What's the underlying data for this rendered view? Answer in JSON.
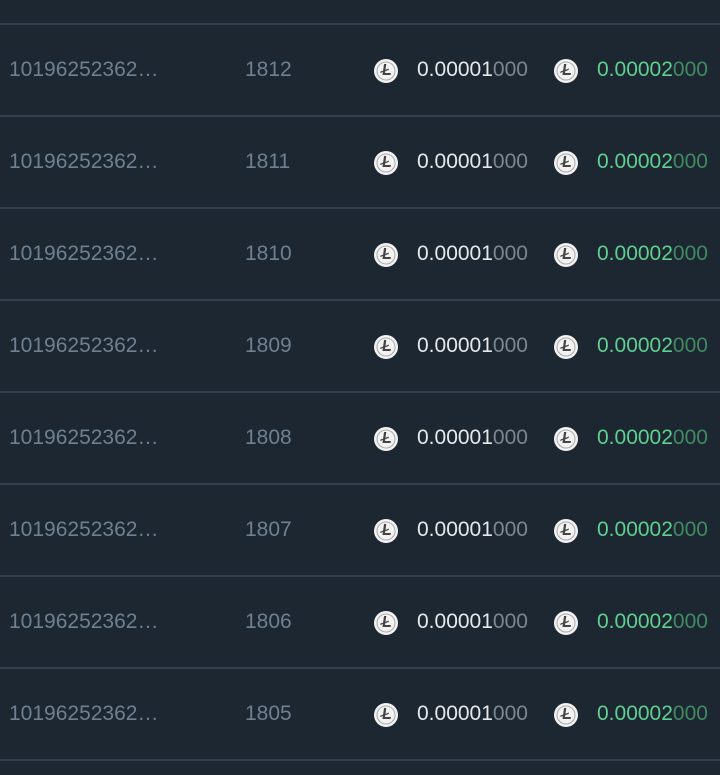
{
  "coin_icon": "litecoin-icon",
  "colors": {
    "background": "#1d2731",
    "fee_value": "#e6e9ec",
    "amount_value": "#5fd08f",
    "muted": "#6e8091"
  },
  "rows": [
    {
      "hash": "10196252362…",
      "block": "1812",
      "fee_main": "0.00001",
      "fee_trail": "000",
      "amount_main": "0.00002",
      "amount_trail": "000"
    },
    {
      "hash": "10196252362…",
      "block": "1811",
      "fee_main": "0.00001",
      "fee_trail": "000",
      "amount_main": "0.00002",
      "amount_trail": "000"
    },
    {
      "hash": "10196252362…",
      "block": "1810",
      "fee_main": "0.00001",
      "fee_trail": "000",
      "amount_main": "0.00002",
      "amount_trail": "000"
    },
    {
      "hash": "10196252362…",
      "block": "1809",
      "fee_main": "0.00001",
      "fee_trail": "000",
      "amount_main": "0.00002",
      "amount_trail": "000"
    },
    {
      "hash": "10196252362…",
      "block": "1808",
      "fee_main": "0.00001",
      "fee_trail": "000",
      "amount_main": "0.00002",
      "amount_trail": "000"
    },
    {
      "hash": "10196252362…",
      "block": "1807",
      "fee_main": "0.00001",
      "fee_trail": "000",
      "amount_main": "0.00002",
      "amount_trail": "000"
    },
    {
      "hash": "10196252362…",
      "block": "1806",
      "fee_main": "0.00001",
      "fee_trail": "000",
      "amount_main": "0.00002",
      "amount_trail": "000"
    },
    {
      "hash": "10196252362…",
      "block": "1805",
      "fee_main": "0.00001",
      "fee_trail": "000",
      "amount_main": "0.00002",
      "amount_trail": "000"
    }
  ]
}
